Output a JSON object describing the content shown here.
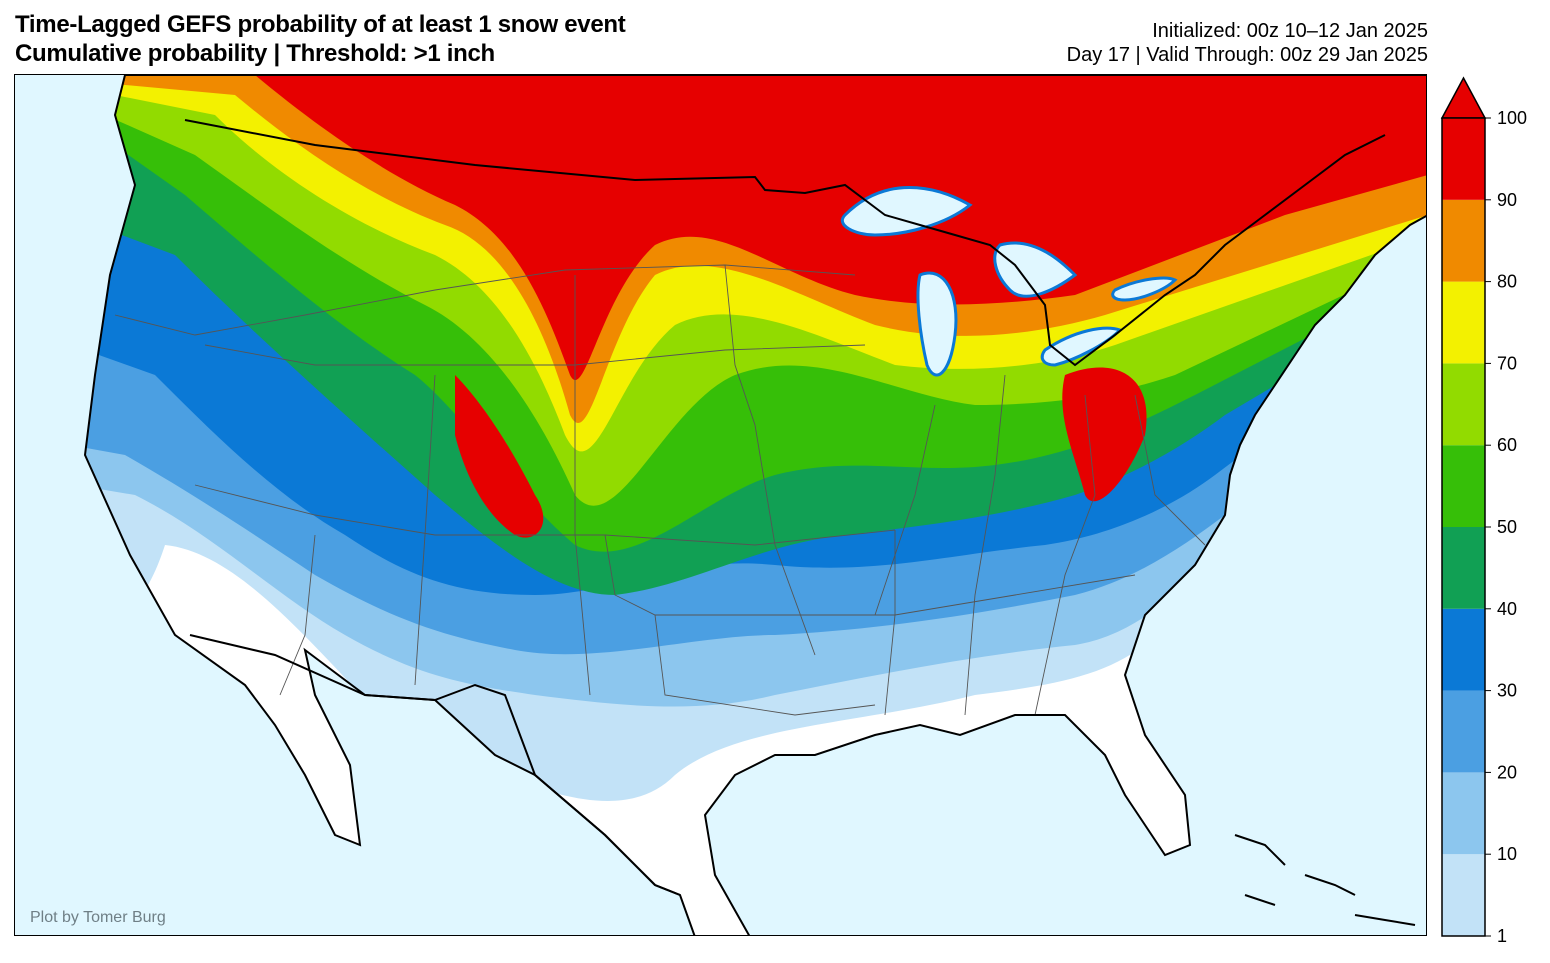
{
  "header": {
    "title_line1": "Time-Lagged GEFS probability of at least 1 snow event",
    "title_line2": "Cumulative probability | Threshold: >1 inch",
    "initialized": "Initialized: 00z 10–12 Jan 2025",
    "valid": "Day 17 | Valid Through: 00z 29 Jan 2025"
  },
  "credit": "Plot by Tomer Burg",
  "colorbar": {
    "ticks": [
      "1",
      "10",
      "20",
      "30",
      "40",
      "50",
      "60",
      "70",
      "80",
      "90",
      "100"
    ],
    "colors": [
      "#c2e2f7",
      "#8cc6ee",
      "#4b9fe2",
      "#0b79d6",
      "#11a054",
      "#36bf08",
      "#92db00",
      "#f3f100",
      "#f08a00",
      "#e60000"
    ],
    "extend": "max"
  },
  "map_colors": {
    "ocean": "#e0f7ff",
    "land": "#ffffff",
    "borders": "#000000",
    "states": "#555555"
  }
}
